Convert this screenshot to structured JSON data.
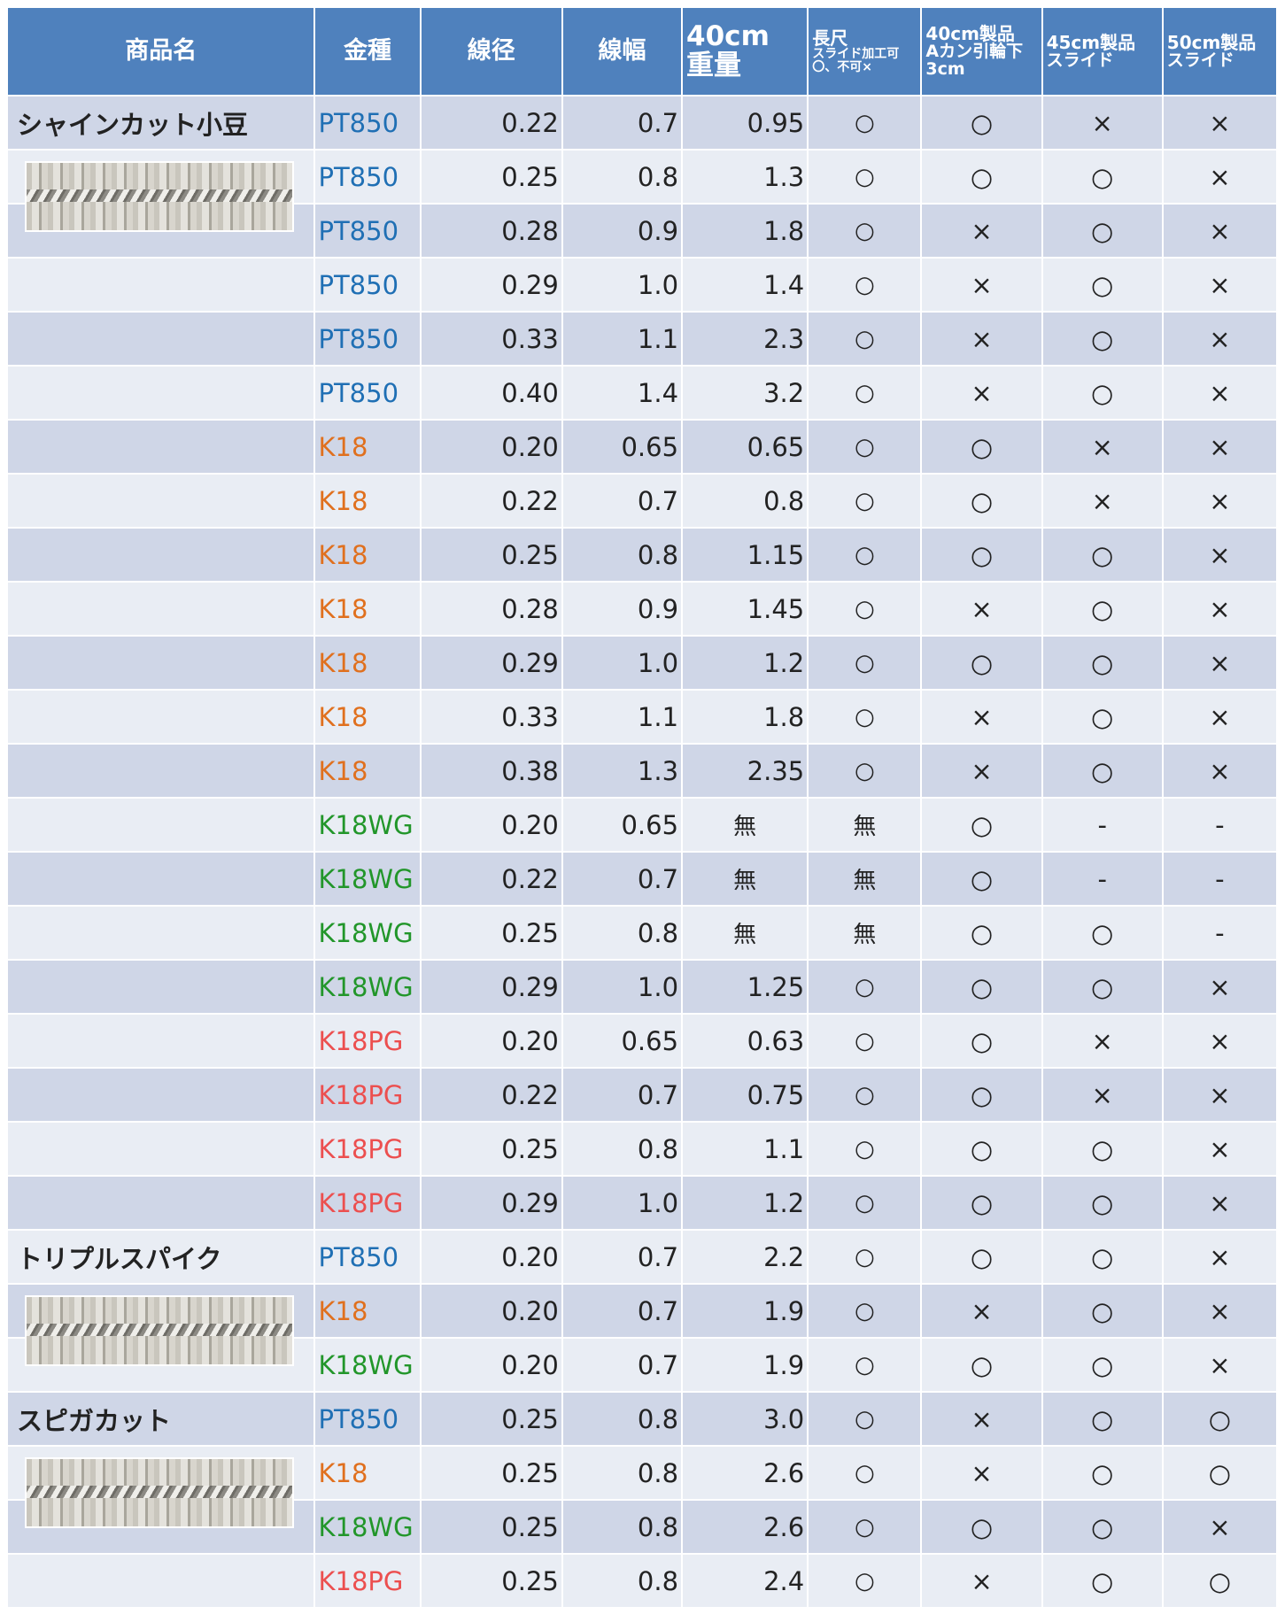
{
  "header": [
    [
      "商品名"
    ],
    [
      "金種"
    ],
    [
      "線径"
    ],
    [
      "線幅"
    ],
    [
      "40cm",
      "重量"
    ],
    [
      "長尺",
      "スライド加工可〇、不可×"
    ],
    [
      "40cm製品",
      "Aカン引輪下3cm"
    ],
    [
      "45cm製品",
      "スライド"
    ],
    [
      "50cm製品",
      "スライド"
    ]
  ],
  "metal_colors": {
    "PT850": "#1f6fb4",
    "K18": "#e0701e",
    "K18WG": "#22962a",
    "K18PG": "#ec4f4f"
  },
  "products": [
    {
      "name": "シャインカット小豆",
      "rows": [
        [
          "PT850",
          "0.22",
          "0.7",
          "0.95",
          "○",
          "○",
          "×",
          "×"
        ],
        [
          "PT850",
          "0.25",
          "0.8",
          "1.3",
          "○",
          "○",
          "○",
          "×"
        ],
        [
          "PT850",
          "0.28",
          "0.9",
          "1.8",
          "○",
          "×",
          "○",
          "×"
        ],
        [
          "PT850",
          "0.29",
          "1.0",
          "1.4",
          "○",
          "×",
          "○",
          "×"
        ],
        [
          "PT850",
          "0.33",
          "1.1",
          "2.3",
          "○",
          "×",
          "○",
          "×"
        ],
        [
          "PT850",
          "0.40",
          "1.4",
          "3.2",
          "○",
          "×",
          "○",
          "×"
        ],
        [
          "K18",
          "0.20",
          "0.65",
          "0.65",
          "○",
          "○",
          "×",
          "×"
        ],
        [
          "K18",
          "0.22",
          "0.7",
          "0.8",
          "○",
          "○",
          "×",
          "×"
        ],
        [
          "K18",
          "0.25",
          "0.8",
          "1.15",
          "○",
          "○",
          "○",
          "×"
        ],
        [
          "K18",
          "0.28",
          "0.9",
          "1.45",
          "○",
          "×",
          "○",
          "×"
        ],
        [
          "K18",
          "0.29",
          "1.0",
          "1.2",
          "○",
          "○",
          "○",
          "×"
        ],
        [
          "K18",
          "0.33",
          "1.1",
          "1.8",
          "○",
          "×",
          "○",
          "×"
        ],
        [
          "K18",
          "0.38",
          "1.3",
          "2.35",
          "○",
          "×",
          "○",
          "×"
        ],
        [
          "K18WG",
          "0.20",
          "0.65",
          "無",
          "無",
          "○",
          "-",
          "-"
        ],
        [
          "K18WG",
          "0.22",
          "0.7",
          "無",
          "無",
          "○",
          "-",
          "-"
        ],
        [
          "K18WG",
          "0.25",
          "0.8",
          "無",
          "無",
          "○",
          "○",
          "-"
        ],
        [
          "K18WG",
          "0.29",
          "1.0",
          "1.25",
          "○",
          "○",
          "○",
          "×"
        ],
        [
          "K18PG",
          "0.20",
          "0.65",
          "0.63",
          "○",
          "○",
          "×",
          "×"
        ],
        [
          "K18PG",
          "0.22",
          "0.7",
          "0.75",
          "○",
          "○",
          "×",
          "×"
        ],
        [
          "K18PG",
          "0.25",
          "0.8",
          "1.1",
          "○",
          "○",
          "○",
          "×"
        ],
        [
          "K18PG",
          "0.29",
          "1.0",
          "1.2",
          "○",
          "○",
          "○",
          "×"
        ]
      ]
    },
    {
      "name": "トリプルスパイク",
      "rows": [
        [
          "PT850",
          "0.20",
          "0.7",
          "2.2",
          "○",
          "○",
          "○",
          "×"
        ],
        [
          "K18",
          "0.20",
          "0.7",
          "1.9",
          "○",
          "×",
          "○",
          "×"
        ],
        [
          "K18WG",
          "0.20",
          "0.7",
          "1.9",
          "○",
          "○",
          "○",
          "×"
        ]
      ]
    },
    {
      "name": "スピガカット",
      "rows": [
        [
          "PT850",
          "0.25",
          "0.8",
          "3.0",
          "○",
          "×",
          "○",
          "○"
        ],
        [
          "K18",
          "0.25",
          "0.8",
          "2.6",
          "○",
          "×",
          "○",
          "○"
        ],
        [
          "K18WG",
          "0.25",
          "0.8",
          "2.6",
          "○",
          "○",
          "○",
          "×"
        ],
        [
          "K18PG",
          "0.25",
          "0.8",
          "2.4",
          "○",
          "×",
          "○",
          "○"
        ]
      ]
    }
  ]
}
